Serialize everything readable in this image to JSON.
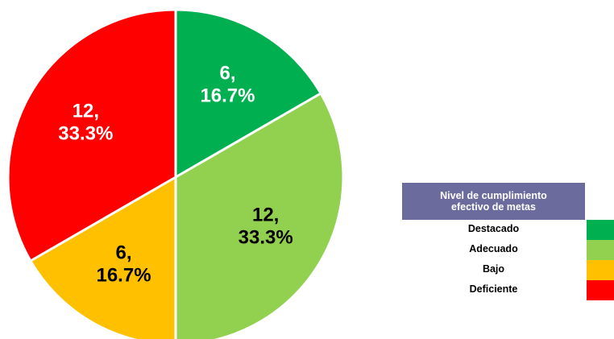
{
  "chart_data": {
    "type": "pie",
    "start_angle_deg": 0,
    "direction": "clockwise",
    "slices": [
      {
        "category": "Destacado",
        "value": 6,
        "percent_label": "16.7%",
        "label": "6,\n16.7%",
        "color": "#00b050",
        "label_color": "#ffffff"
      },
      {
        "category": "Adecuado",
        "value": 12,
        "percent_label": "33.3%",
        "label": "12,\n33.3%",
        "color": "#92d050",
        "label_color": "#000000"
      },
      {
        "category": "Bajo",
        "value": 6,
        "percent_label": "16.7%",
        "label": "6,\n16.7%",
        "color": "#ffc000",
        "label_color": "#000000"
      },
      {
        "category": "Deficiente",
        "value": 12,
        "percent_label": "33.3%",
        "label": "12,\n33.3%",
        "color": "#ff0000",
        "label_color": "#ffffff"
      }
    ],
    "legend": {
      "title": "Nivel de cumplimiento\nefectivo de metas",
      "title_bg": "#6b6c9d",
      "placement": "right",
      "entries": [
        "Destacado",
        "Adecuado",
        "Bajo",
        "Deficiente"
      ]
    },
    "slice_border_color": "#ffffff"
  }
}
